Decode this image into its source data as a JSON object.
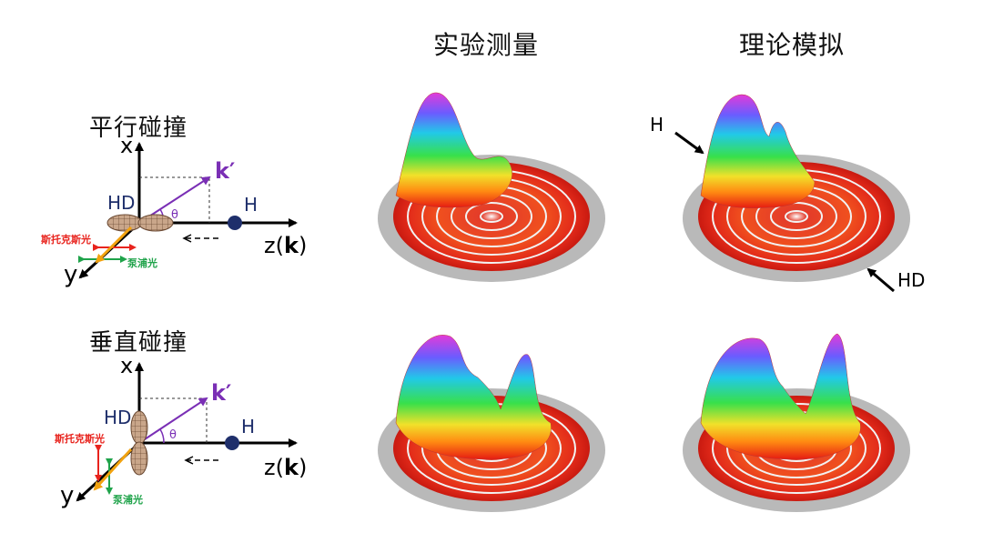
{
  "headers": {
    "experiment": "实验测量",
    "theory": "理论模拟"
  },
  "rows": [
    {
      "title": "平行碰撞",
      "axis_x": "x",
      "axis_y": "y",
      "axis_z_prefix": "z(",
      "axis_z_bold": "k",
      "axis_z_suffix": ")",
      "k_prime": "k′",
      "theta": "θ",
      "hd": "HD",
      "h": "H",
      "stokes_light": "斯托克斯光",
      "pump_light": "泵浦光"
    },
    {
      "title": "垂直碰撞",
      "axis_x": "x",
      "axis_y": "y",
      "axis_z_prefix": "z(",
      "axis_z_bold": "k",
      "axis_z_suffix": ")",
      "k_prime": "k′",
      "theta": "θ",
      "hd": "HD",
      "h": "H",
      "stokes_light": "斯托克斯光",
      "pump_light": "泵浦光"
    }
  ],
  "annotations": {
    "h_arrow": "H",
    "hd_arrow": "HD"
  },
  "colors": {
    "vector_purple": "#7a2fb5",
    "hd_navy": "#1f2f6b",
    "stokes_red": "#e8231d",
    "pump_green": "#1fa34a",
    "arrow_orange": "#f2a20f"
  }
}
